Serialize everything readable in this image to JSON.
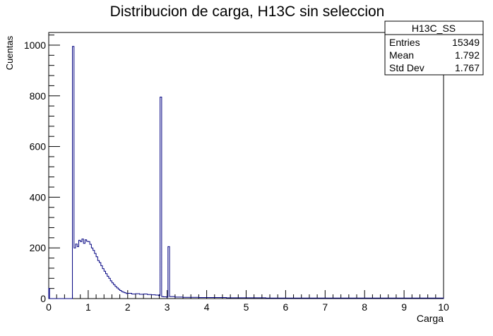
{
  "chart_data": {
    "type": "histogram",
    "title": "Distribucion de carga, H13C sin seleccion",
    "xlabel": "Carga",
    "ylabel": "Cuentas",
    "xlim": [
      0,
      10
    ],
    "ylim": [
      0,
      1050
    ],
    "x_ticks": [
      0,
      1,
      2,
      3,
      4,
      5,
      6,
      7,
      8,
      9,
      10
    ],
    "x_tick_labels": [
      "0",
      "1",
      "2",
      "3",
      "4",
      "5",
      "6",
      "7",
      "8",
      "9",
      "10"
    ],
    "y_ticks": [
      0,
      200,
      400,
      600,
      800,
      1000
    ],
    "y_tick_labels": [
      "0",
      "200",
      "400",
      "600",
      "800",
      "1000"
    ],
    "line_color": "#000080",
    "bins": [
      [
        0.0,
        40
      ],
      [
        0.02,
        0
      ],
      [
        0.56,
        0
      ],
      [
        0.6,
        995
      ],
      [
        0.64,
        200
      ],
      [
        0.68,
        215
      ],
      [
        0.72,
        205
      ],
      [
        0.76,
        230
      ],
      [
        0.8,
        225
      ],
      [
        0.84,
        235
      ],
      [
        0.88,
        218
      ],
      [
        0.92,
        232
      ],
      [
        0.96,
        226
      ],
      [
        1.0,
        225
      ],
      [
        1.04,
        214
      ],
      [
        1.08,
        200
      ],
      [
        1.12,
        190
      ],
      [
        1.16,
        178
      ],
      [
        1.2,
        165
      ],
      [
        1.24,
        150
      ],
      [
        1.28,
        142
      ],
      [
        1.32,
        130
      ],
      [
        1.36,
        118
      ],
      [
        1.4,
        108
      ],
      [
        1.44,
        98
      ],
      [
        1.48,
        88
      ],
      [
        1.52,
        80
      ],
      [
        1.56,
        70
      ],
      [
        1.6,
        62
      ],
      [
        1.64,
        55
      ],
      [
        1.68,
        48
      ],
      [
        1.72,
        42
      ],
      [
        1.76,
        37
      ],
      [
        1.8,
        32
      ],
      [
        1.84,
        28
      ],
      [
        1.88,
        25
      ],
      [
        1.92,
        23
      ],
      [
        1.96,
        20
      ],
      [
        2.0,
        21
      ],
      [
        2.1,
        18
      ],
      [
        2.2,
        19
      ],
      [
        2.3,
        17
      ],
      [
        2.4,
        18
      ],
      [
        2.5,
        16
      ],
      [
        2.6,
        15
      ],
      [
        2.7,
        14
      ],
      [
        2.78,
        12
      ],
      [
        2.82,
        795
      ],
      [
        2.86,
        8
      ],
      [
        2.9,
        7
      ],
      [
        2.98,
        6
      ],
      [
        3.02,
        205
      ],
      [
        3.06,
        8
      ],
      [
        3.2,
        6
      ],
      [
        3.4,
        5
      ],
      [
        3.6,
        5
      ],
      [
        3.8,
        4
      ],
      [
        4.0,
        4
      ],
      [
        4.5,
        3
      ],
      [
        5.0,
        3
      ],
      [
        5.5,
        2
      ],
      [
        6.0,
        2
      ],
      [
        6.5,
        2
      ],
      [
        7.0,
        2
      ],
      [
        7.5,
        2
      ],
      [
        8.0,
        2
      ],
      [
        8.5,
        2
      ],
      [
        9.0,
        2
      ],
      [
        9.5,
        2
      ],
      [
        10.0,
        0
      ]
    ],
    "stats_box": {
      "name": "H13C_SS",
      "rows": [
        {
          "label": "Entries",
          "value": "15349"
        },
        {
          "label": "Mean",
          "value": "1.792"
        },
        {
          "label": "Std Dev",
          "value": "1.767"
        }
      ]
    }
  }
}
